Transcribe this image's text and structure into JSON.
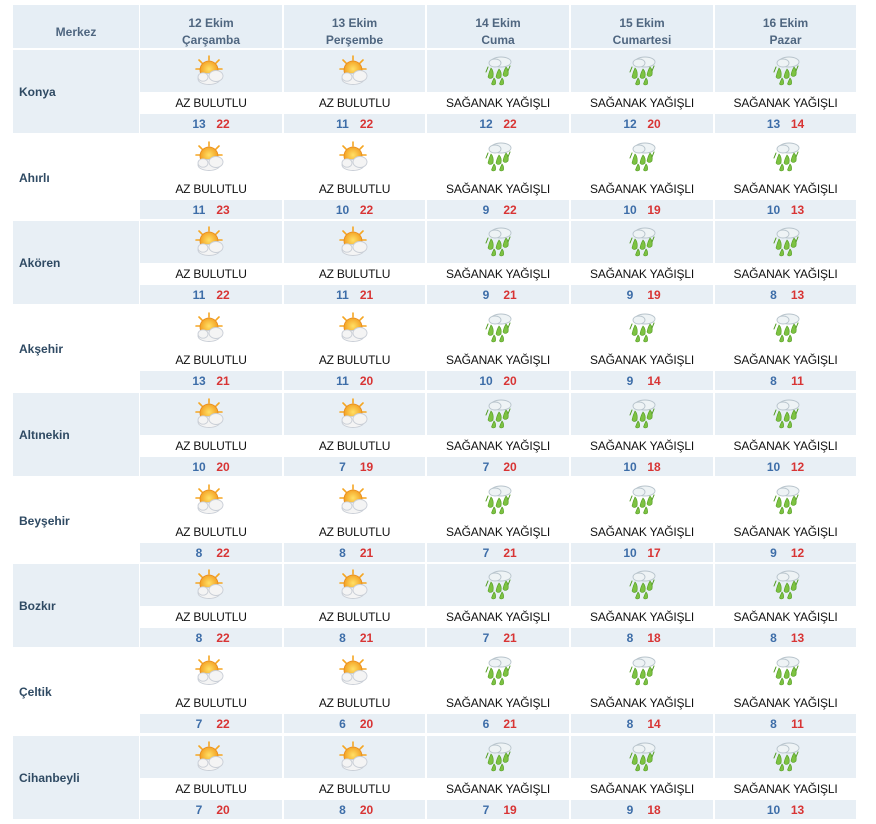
{
  "header": {
    "merkez_label": "Merkez",
    "days": [
      {
        "date": "12 Ekim",
        "weekday": "Çarşamba"
      },
      {
        "date": "13 Ekim",
        "weekday": "Perşembe"
      },
      {
        "date": "14 Ekim",
        "weekday": "Cuma"
      },
      {
        "date": "15 Ekim",
        "weekday": "Cumartesi"
      },
      {
        "date": "16 Ekim",
        "weekday": "Pazar"
      }
    ]
  },
  "colors": {
    "header_bg": "#e6eef5",
    "row_shade": "#e8eff5",
    "min_temp": "#3d6da8",
    "max_temp": "#d83434"
  },
  "rows": [
    {
      "city": "Konya",
      "days": [
        {
          "icon": "partly-cloudy-sun-icon",
          "condition": "AZ BULUTLU",
          "min": "13",
          "max": "22"
        },
        {
          "icon": "partly-cloudy-sun-icon",
          "condition": "AZ BULUTLU",
          "min": "11",
          "max": "22"
        },
        {
          "icon": "rain-shower-icon",
          "condition": "SAĞANAK YAĞIŞLI",
          "min": "12",
          "max": "22"
        },
        {
          "icon": "rain-shower-icon",
          "condition": "SAĞANAK YAĞIŞLI",
          "min": "12",
          "max": "20"
        },
        {
          "icon": "rain-shower-icon",
          "condition": "SAĞANAK YAĞIŞLI",
          "min": "13",
          "max": "14"
        }
      ]
    },
    {
      "city": "Ahırlı",
      "days": [
        {
          "icon": "partly-cloudy-sun-icon",
          "condition": "AZ BULUTLU",
          "min": "11",
          "max": "23"
        },
        {
          "icon": "partly-cloudy-sun-icon",
          "condition": "AZ BULUTLU",
          "min": "10",
          "max": "22"
        },
        {
          "icon": "rain-shower-icon",
          "condition": "SAĞANAK YAĞIŞLI",
          "min": "9",
          "max": "22"
        },
        {
          "icon": "rain-shower-icon",
          "condition": "SAĞANAK YAĞIŞLI",
          "min": "10",
          "max": "19"
        },
        {
          "icon": "rain-shower-icon",
          "condition": "SAĞANAK YAĞIŞLI",
          "min": "10",
          "max": "13"
        }
      ]
    },
    {
      "city": "Akören",
      "days": [
        {
          "icon": "partly-cloudy-sun-icon",
          "condition": "AZ BULUTLU",
          "min": "11",
          "max": "22"
        },
        {
          "icon": "partly-cloudy-sun-icon",
          "condition": "AZ BULUTLU",
          "min": "11",
          "max": "21"
        },
        {
          "icon": "rain-shower-icon",
          "condition": "SAĞANAK YAĞIŞLI",
          "min": "9",
          "max": "21"
        },
        {
          "icon": "rain-shower-icon",
          "condition": "SAĞANAK YAĞIŞLI",
          "min": "9",
          "max": "19"
        },
        {
          "icon": "rain-shower-icon",
          "condition": "SAĞANAK YAĞIŞLI",
          "min": "8",
          "max": "13"
        }
      ]
    },
    {
      "city": "Akşehir",
      "days": [
        {
          "icon": "partly-cloudy-sun-icon",
          "condition": "AZ BULUTLU",
          "min": "13",
          "max": "21"
        },
        {
          "icon": "partly-cloudy-sun-icon",
          "condition": "AZ BULUTLU",
          "min": "11",
          "max": "20"
        },
        {
          "icon": "rain-shower-icon",
          "condition": "SAĞANAK YAĞIŞLI",
          "min": "10",
          "max": "20"
        },
        {
          "icon": "rain-shower-icon",
          "condition": "SAĞANAK YAĞIŞLI",
          "min": "9",
          "max": "14"
        },
        {
          "icon": "rain-shower-icon",
          "condition": "SAĞANAK YAĞIŞLI",
          "min": "8",
          "max": "11"
        }
      ]
    },
    {
      "city": "Altınekin",
      "days": [
        {
          "icon": "partly-cloudy-sun-icon",
          "condition": "AZ BULUTLU",
          "min": "10",
          "max": "20"
        },
        {
          "icon": "partly-cloudy-sun-icon",
          "condition": "AZ BULUTLU",
          "min": "7",
          "max": "19"
        },
        {
          "icon": "rain-shower-icon",
          "condition": "SAĞANAK YAĞIŞLI",
          "min": "7",
          "max": "20"
        },
        {
          "icon": "rain-shower-icon",
          "condition": "SAĞANAK YAĞIŞLI",
          "min": "10",
          "max": "18"
        },
        {
          "icon": "rain-shower-icon",
          "condition": "SAĞANAK YAĞIŞLI",
          "min": "10",
          "max": "12"
        }
      ]
    },
    {
      "city": "Beyşehir",
      "days": [
        {
          "icon": "partly-cloudy-sun-icon",
          "condition": "AZ BULUTLU",
          "min": "8",
          "max": "22"
        },
        {
          "icon": "partly-cloudy-sun-icon",
          "condition": "AZ BULUTLU",
          "min": "8",
          "max": "21"
        },
        {
          "icon": "rain-shower-icon",
          "condition": "SAĞANAK YAĞIŞLI",
          "min": "7",
          "max": "21"
        },
        {
          "icon": "rain-shower-icon",
          "condition": "SAĞANAK YAĞIŞLI",
          "min": "10",
          "max": "17"
        },
        {
          "icon": "rain-shower-icon",
          "condition": "SAĞANAK YAĞIŞLI",
          "min": "9",
          "max": "12"
        }
      ]
    },
    {
      "city": "Bozkır",
      "days": [
        {
          "icon": "partly-cloudy-sun-icon",
          "condition": "AZ BULUTLU",
          "min": "8",
          "max": "22"
        },
        {
          "icon": "partly-cloudy-sun-icon",
          "condition": "AZ BULUTLU",
          "min": "8",
          "max": "21"
        },
        {
          "icon": "rain-shower-icon",
          "condition": "SAĞANAK YAĞIŞLI",
          "min": "7",
          "max": "21"
        },
        {
          "icon": "rain-shower-icon",
          "condition": "SAĞANAK YAĞIŞLI",
          "min": "8",
          "max": "18"
        },
        {
          "icon": "rain-shower-icon",
          "condition": "SAĞANAK YAĞIŞLI",
          "min": "8",
          "max": "13"
        }
      ]
    },
    {
      "city": "Çeltik",
      "days": [
        {
          "icon": "partly-cloudy-sun-icon",
          "condition": "AZ BULUTLU",
          "min": "7",
          "max": "22"
        },
        {
          "icon": "partly-cloudy-sun-icon",
          "condition": "AZ BULUTLU",
          "min": "6",
          "max": "20"
        },
        {
          "icon": "rain-shower-icon",
          "condition": "SAĞANAK YAĞIŞLI",
          "min": "6",
          "max": "21"
        },
        {
          "icon": "rain-shower-icon",
          "condition": "SAĞANAK YAĞIŞLI",
          "min": "8",
          "max": "14"
        },
        {
          "icon": "rain-shower-icon",
          "condition": "SAĞANAK YAĞIŞLI",
          "min": "8",
          "max": "11"
        }
      ]
    },
    {
      "city": "Cihanbeyli",
      "days": [
        {
          "icon": "partly-cloudy-sun-icon",
          "condition": "AZ BULUTLU",
          "min": "7",
          "max": "20"
        },
        {
          "icon": "partly-cloudy-sun-icon",
          "condition": "AZ BULUTLU",
          "min": "8",
          "max": "20"
        },
        {
          "icon": "rain-shower-icon",
          "condition": "SAĞANAK YAĞIŞLI",
          "min": "7",
          "max": "19"
        },
        {
          "icon": "rain-shower-icon",
          "condition": "SAĞANAK YAĞIŞLI",
          "min": "9",
          "max": "18"
        },
        {
          "icon": "rain-shower-icon",
          "condition": "SAĞANAK YAĞIŞLI",
          "min": "10",
          "max": "13"
        }
      ]
    }
  ]
}
